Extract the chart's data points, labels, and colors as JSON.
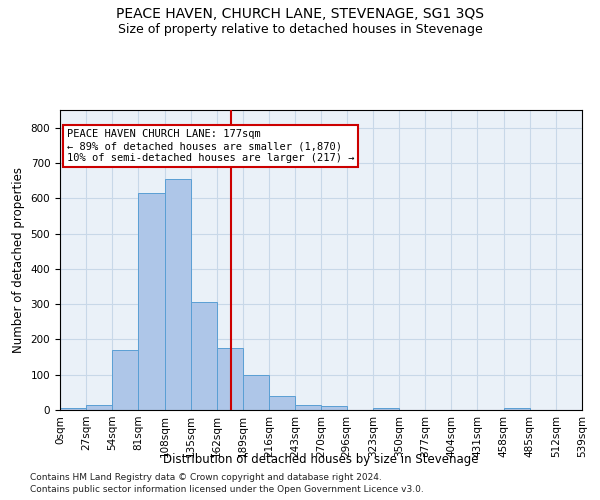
{
  "title1": "PEACE HAVEN, CHURCH LANE, STEVENAGE, SG1 3QS",
  "title2": "Size of property relative to detached houses in Stevenage",
  "xlabel": "Distribution of detached houses by size in Stevenage",
  "ylabel": "Number of detached properties",
  "bin_edges": [
    0,
    27,
    54,
    81,
    108,
    135,
    162,
    189,
    216,
    243,
    270,
    296,
    323,
    350,
    377,
    404,
    431,
    458,
    485,
    512,
    539
  ],
  "bar_heights": [
    5,
    14,
    170,
    615,
    655,
    305,
    175,
    100,
    40,
    14,
    10,
    0,
    5,
    0,
    0,
    0,
    0,
    5,
    0,
    0
  ],
  "bar_color": "#aec6e8",
  "bar_edgecolor": "#5a9fd4",
  "vline_x": 177,
  "vline_color": "#cc0000",
  "annotation_text": "PEACE HAVEN CHURCH LANE: 177sqm\n← 89% of detached houses are smaller (1,870)\n10% of semi-detached houses are larger (217) →",
  "annotation_box_color": "#ffffff",
  "annotation_box_edgecolor": "#cc0000",
  "ylim": [
    0,
    850
  ],
  "yticks": [
    0,
    100,
    200,
    300,
    400,
    500,
    600,
    700,
    800
  ],
  "grid_color": "#c8d8e8",
  "background_color": "#eaf1f8",
  "footer_line1": "Contains HM Land Registry data © Crown copyright and database right 2024.",
  "footer_line2": "Contains public sector information licensed under the Open Government Licence v3.0.",
  "title1_fontsize": 10,
  "title2_fontsize": 9,
  "xlabel_fontsize": 8.5,
  "ylabel_fontsize": 8.5,
  "tick_fontsize": 7.5,
  "annotation_fontsize": 7.5,
  "footer_fontsize": 6.5
}
